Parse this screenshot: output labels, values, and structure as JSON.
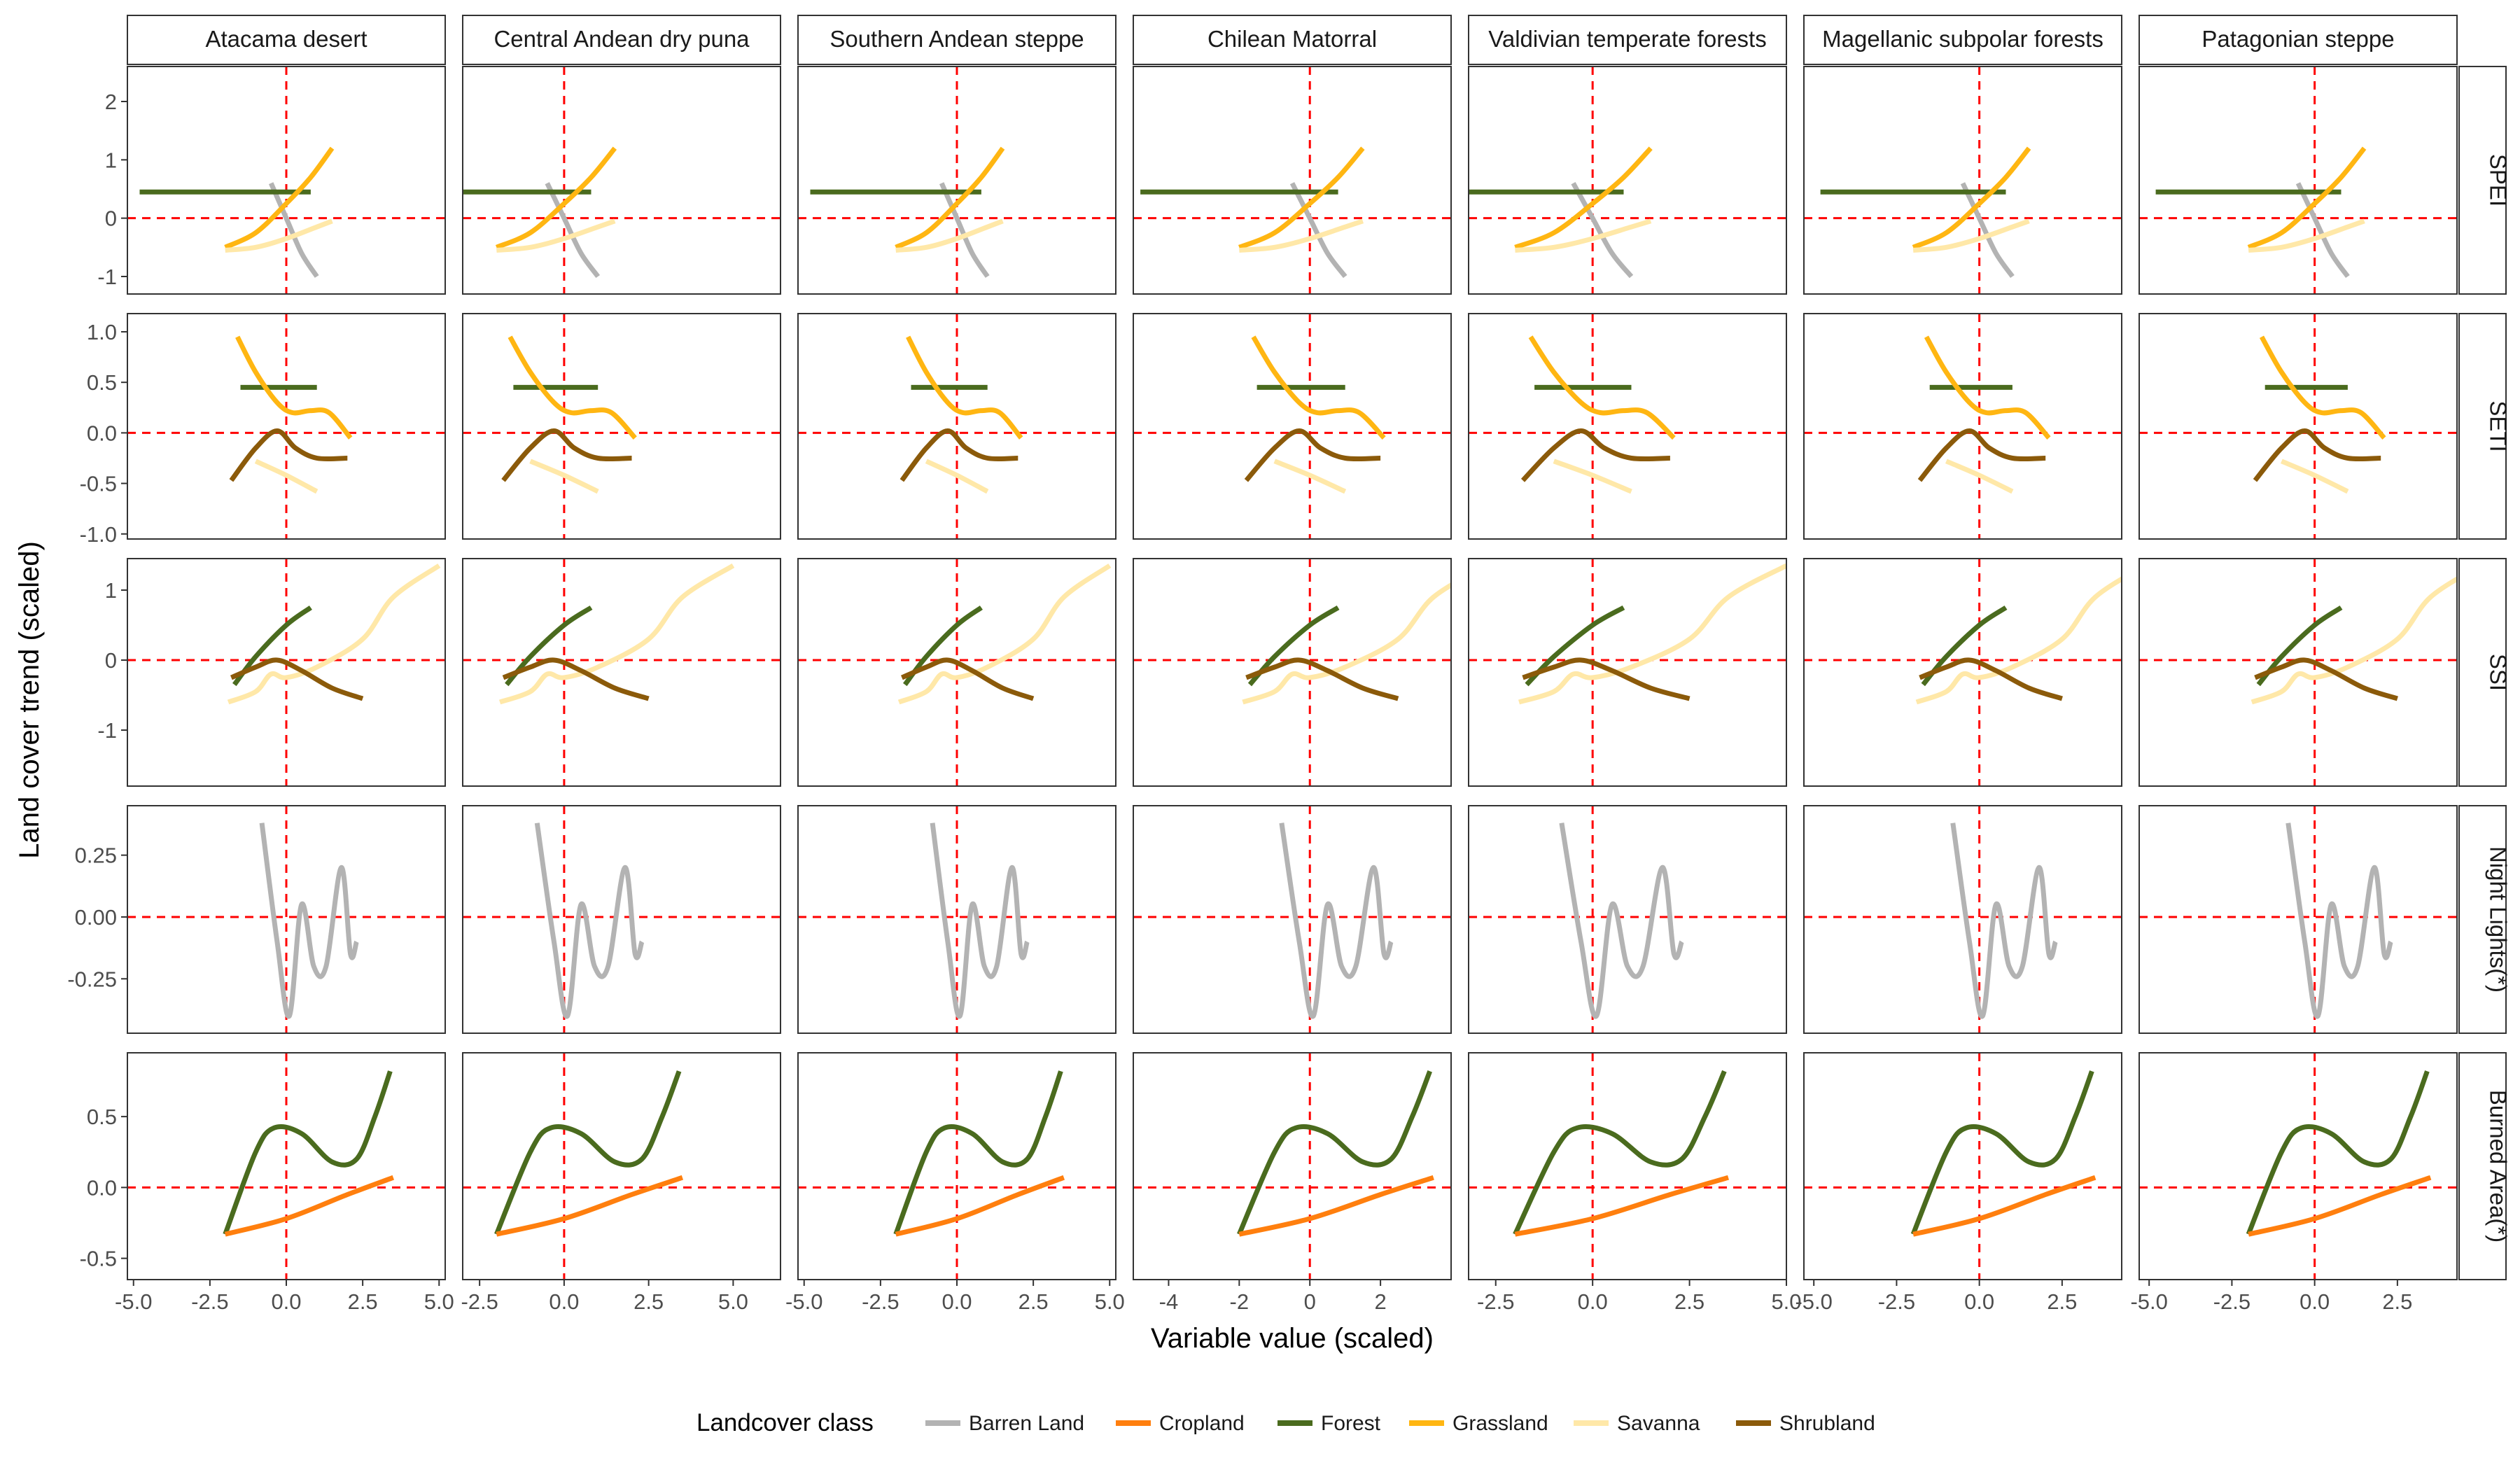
{
  "chart_data": {
    "type": "line",
    "facet_columns": [
      "Atacama desert",
      "Central Andean dry puna",
      "Southern Andean steppe",
      "Chilean Matorral",
      "Valdivian temperate forests",
      "Magellanic subpolar forests",
      "Patagonian steppe"
    ],
    "facet_rows": [
      "SPEI",
      "SETI",
      "SSI",
      "Night Lights(*)",
      "Burned Area(*)"
    ],
    "xlabel": "Variable value (scaled)",
    "ylabel": "Land cover trend (scaled)",
    "reference_lines": {
      "x": 0,
      "y": 0,
      "color": "#ff0000",
      "style": "dashed"
    },
    "grid": false,
    "legend": {
      "title": "Landcover class",
      "position": "bottom"
    },
    "series_colors": {
      "Barren Land": "#b3b3b3",
      "Cropland": "#ff7f0e",
      "Forest": "#4a6b1e",
      "Grassland": "#ffb612",
      "Savanna": "#ffe8a8",
      "Shrubland": "#8b5a0a"
    },
    "legend_order": [
      "Barren Land",
      "Cropland",
      "Forest",
      "Grassland",
      "Savanna",
      "Shrubland"
    ],
    "x_axes": [
      {
        "limits": [
          -5.2,
          5.2
        ],
        "ticks": [
          -5,
          -2.5,
          0,
          2.5,
          5
        ],
        "labels": [
          "-5.0",
          "-2.5",
          "0.0",
          "2.5",
          "5.0"
        ]
      },
      {
        "limits": [
          -3.0,
          6.4
        ],
        "ticks": [
          -2.5,
          0,
          2.5,
          5
        ],
        "labels": [
          "-2.5",
          "0.0",
          "2.5",
          "5.0"
        ]
      },
      {
        "limits": [
          -5.2,
          5.2
        ],
        "ticks": [
          -5,
          -2.5,
          0,
          2.5,
          5
        ],
        "labels": [
          "-5.0",
          "-2.5",
          "0.0",
          "2.5",
          "5.0"
        ]
      },
      {
        "limits": [
          -5.0,
          4.0
        ],
        "ticks": [
          -4,
          -2,
          0,
          2
        ],
        "labels": [
          "-4",
          "-2",
          "0",
          "2"
        ]
      },
      {
        "limits": [
          -3.2,
          5.0
        ],
        "ticks": [
          -2.5,
          0,
          2.5,
          5
        ],
        "labels": [
          "-2.5",
          "0.0",
          "2.5",
          "5.0"
        ]
      },
      {
        "limits": [
          -5.3,
          4.3
        ],
        "ticks": [
          -5,
          -2.5,
          0,
          2.5
        ],
        "labels": [
          "-5.0",
          "-2.5",
          "0.0",
          "2.5"
        ]
      },
      {
        "limits": [
          -5.3,
          4.3
        ],
        "ticks": [
          -5,
          -2.5,
          0,
          2.5
        ],
        "labels": [
          "-5.0",
          "-2.5",
          "0.0",
          "2.5"
        ]
      }
    ],
    "y_axes": [
      {
        "limits": [
          -1.3,
          2.6
        ],
        "ticks": [
          -1,
          0,
          1,
          2
        ],
        "labels": [
          "-1",
          "0",
          "1",
          "2"
        ]
      },
      {
        "limits": [
          -1.05,
          1.18
        ],
        "ticks": [
          -1,
          -0.5,
          0,
          0.5,
          1
        ],
        "labels": [
          "-1.0",
          "-0.5",
          "0.0",
          "0.5",
          "1.0"
        ]
      },
      {
        "limits": [
          -1.8,
          1.45
        ],
        "ticks": [
          -1,
          0,
          1
        ],
        "labels": [
          "-1",
          "0",
          "1"
        ]
      },
      {
        "limits": [
          -0.47,
          0.45
        ],
        "ticks": [
          -0.25,
          0,
          0.25
        ],
        "labels": [
          "-0.25",
          "0.00",
          "0.25"
        ]
      },
      {
        "limits": [
          -0.65,
          0.95
        ],
        "ticks": [
          -0.5,
          0,
          0.5
        ],
        "labels": [
          "-0.5",
          "0.0",
          "0.5"
        ]
      }
    ],
    "curves": {
      "SPEI": [
        {
          "series": "Barren Land",
          "points": [
            [
              -0.5,
              0.6
            ],
            [
              0,
              0.0
            ],
            [
              0.5,
              -0.6
            ],
            [
              1.0,
              -1.0
            ]
          ]
        },
        {
          "series": "Forest",
          "points": [
            [
              -4.8,
              0.45
            ],
            [
              0.8,
              0.45
            ]
          ]
        },
        {
          "series": "Grassland",
          "points": [
            [
              -2.0,
              -0.5
            ],
            [
              -1.0,
              -0.25
            ],
            [
              0,
              0.25
            ],
            [
              0.8,
              0.7
            ],
            [
              1.5,
              1.2
            ]
          ]
        },
        {
          "series": "Savanna",
          "points": [
            [
              -2.0,
              -0.55
            ],
            [
              -1.0,
              -0.5
            ],
            [
              0,
              -0.35
            ],
            [
              1.0,
              -0.15
            ],
            [
              1.5,
              -0.05
            ]
          ]
        }
      ],
      "SETI": [
        {
          "series": "Forest",
          "points": [
            [
              -1.5,
              0.45
            ],
            [
              1.0,
              0.45
            ]
          ]
        },
        {
          "series": "Grassland",
          "points": [
            [
              -1.6,
              0.95
            ],
            [
              -1.0,
              0.6
            ],
            [
              -0.3,
              0.3
            ],
            [
              0.2,
              0.2
            ],
            [
              0.8,
              0.22
            ],
            [
              1.4,
              0.2
            ],
            [
              2.1,
              -0.05
            ]
          ]
        },
        {
          "series": "Savanna",
          "points": [
            [
              -1.0,
              -0.28
            ],
            [
              0,
              -0.42
            ],
            [
              1.0,
              -0.58
            ]
          ]
        },
        {
          "series": "Shrubland",
          "points": [
            [
              -1.8,
              -0.47
            ],
            [
              -1.0,
              -0.15
            ],
            [
              -0.3,
              0.02
            ],
            [
              0.3,
              -0.15
            ],
            [
              1.0,
              -0.25
            ],
            [
              2.0,
              -0.25
            ]
          ]
        }
      ],
      "SSI": [
        {
          "series": "Forest",
          "points": [
            [
              -1.7,
              -0.35
            ],
            [
              -1.0,
              0.05
            ],
            [
              0,
              0.5
            ],
            [
              0.8,
              0.75
            ]
          ]
        },
        {
          "series": "Savanna",
          "points": [
            [
              -1.9,
              -0.6
            ],
            [
              -1.0,
              -0.45
            ],
            [
              -0.5,
              -0.2
            ],
            [
              0,
              -0.25
            ],
            [
              1.0,
              -0.1
            ],
            [
              2.5,
              0.3
            ],
            [
              3.5,
              0.9
            ],
            [
              5.0,
              1.35
            ]
          ]
        },
        {
          "series": "Shrubland",
          "points": [
            [
              -1.8,
              -0.25
            ],
            [
              -1.0,
              -0.1
            ],
            [
              -0.3,
              0.0
            ],
            [
              0.5,
              -0.15
            ],
            [
              1.5,
              -0.4
            ],
            [
              2.5,
              -0.55
            ]
          ]
        }
      ],
      "Night Lights(*)": [
        {
          "series": "Barren Land",
          "points": [
            [
              -0.8,
              0.38
            ],
            [
              -0.3,
              -0.1
            ],
            [
              0.1,
              -0.4
            ],
            [
              0.5,
              0.05
            ],
            [
              0.9,
              -0.2
            ],
            [
              1.3,
              -0.2
            ],
            [
              1.8,
              0.2
            ],
            [
              2.1,
              -0.15
            ],
            [
              2.3,
              -0.1
            ]
          ]
        }
      ],
      "Burned Area(*)": [
        {
          "series": "Forest",
          "points": [
            [
              -2.0,
              -0.33
            ],
            [
              -1.0,
              0.25
            ],
            [
              -0.4,
              0.42
            ],
            [
              0.5,
              0.38
            ],
            [
              1.5,
              0.18
            ],
            [
              2.3,
              0.2
            ],
            [
              2.9,
              0.5
            ],
            [
              3.4,
              0.82
            ]
          ]
        },
        {
          "series": "Cropland",
          "points": [
            [
              -2.0,
              -0.33
            ],
            [
              0,
              -0.22
            ],
            [
              2.0,
              -0.05
            ],
            [
              3.5,
              0.07
            ]
          ]
        }
      ]
    },
    "note": "Every panel of a row shows the same set of smoothed curves, placed in data units of that panel's axes."
  }
}
